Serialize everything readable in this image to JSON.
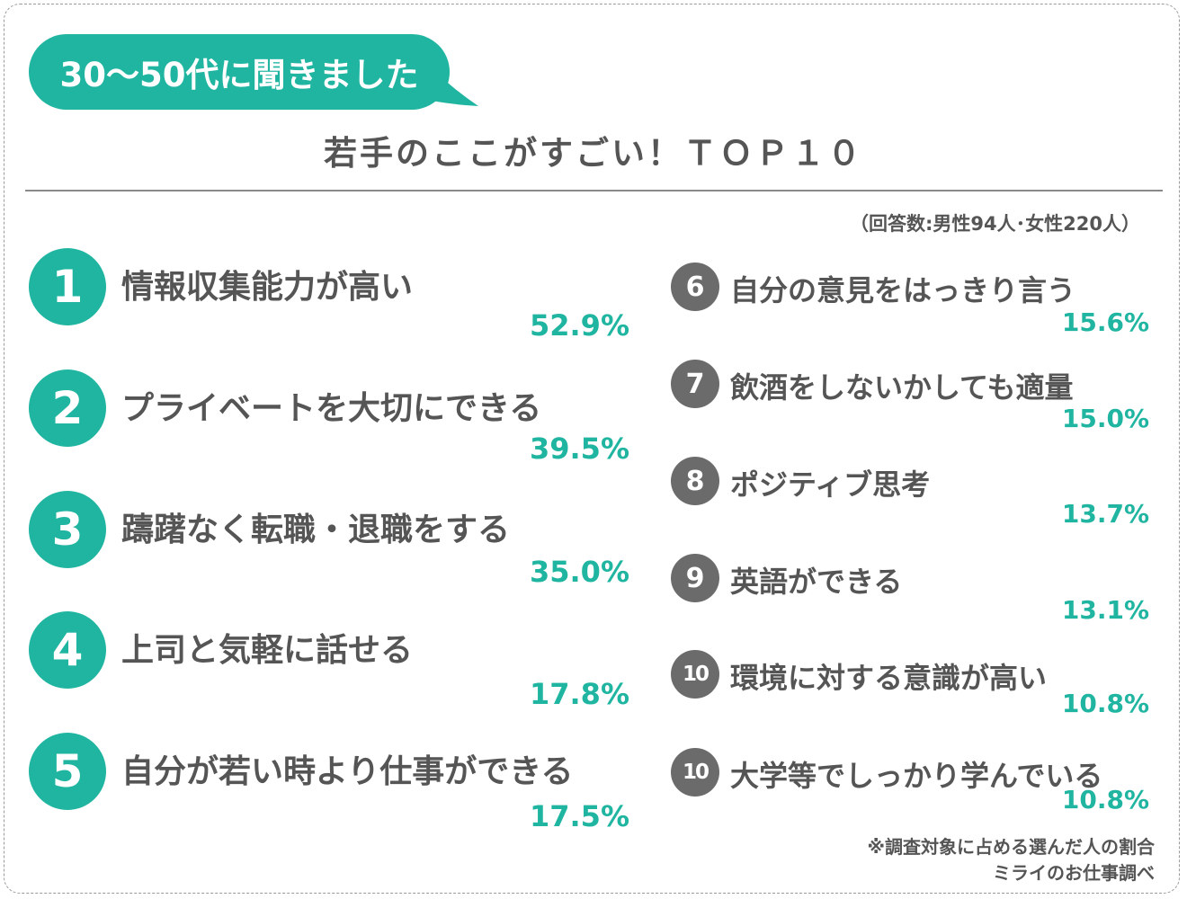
{
  "colors": {
    "accent": "#1fb5a1",
    "badge_gray": "#6b6b6b",
    "text": "#555555"
  },
  "bubble_label": "30〜50代に聞きました",
  "title": "若手のここがすごい！ＴＯＰ１０",
  "respondents": "（回答数:男性94人･女性220人）",
  "chart_data": {
    "type": "table",
    "title": "若手のここがすごい！ＴＯＰ１０",
    "columns": [
      "rank",
      "item",
      "percent"
    ],
    "rows": [
      {
        "rank": "1",
        "label": "情報収集能力が高い",
        "value": 52.9,
        "pct": "52.9%"
      },
      {
        "rank": "2",
        "label": "プライベートを大切にできる",
        "value": 39.5,
        "pct": "39.5%"
      },
      {
        "rank": "3",
        "label": "躊躇なく転職・退職をする",
        "value": 35.0,
        "pct": "35.0%"
      },
      {
        "rank": "4",
        "label": "上司と気軽に話せる",
        "value": 17.8,
        "pct": "17.8%"
      },
      {
        "rank": "5",
        "label": "自分が若い時より仕事ができる",
        "value": 17.5,
        "pct": "17.5%"
      },
      {
        "rank": "6",
        "label": "自分の意見をはっきり言う",
        "value": 15.6,
        "pct": "15.6%"
      },
      {
        "rank": "7",
        "label": "飲酒をしないかしても適量",
        "value": 15.0,
        "pct": "15.0%"
      },
      {
        "rank": "8",
        "label": "ポジティブ思考",
        "value": 13.7,
        "pct": "13.7%"
      },
      {
        "rank": "9",
        "label": "英語ができる",
        "value": 13.1,
        "pct": "13.1%"
      },
      {
        "rank": "10",
        "label": "環境に対する意識が高い",
        "value": 10.8,
        "pct": "10.8%"
      },
      {
        "rank": "10",
        "label": "大学等でしっかり学んでいる",
        "value": 10.8,
        "pct": "10.8%"
      }
    ]
  },
  "footnote": {
    "note": "※調査対象に占める選んだ人の割合",
    "source": "ミライのお仕事調べ"
  }
}
